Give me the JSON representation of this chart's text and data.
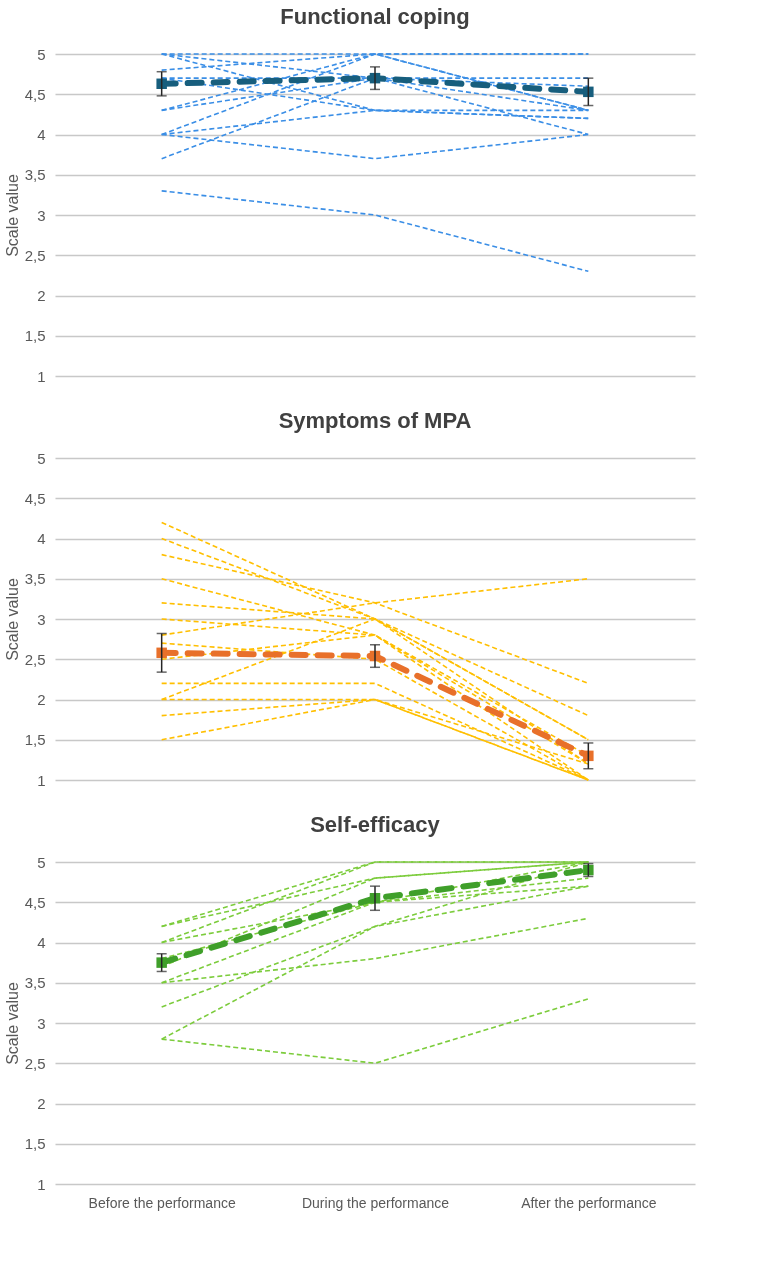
{
  "chart_data": [
    {
      "type": "line",
      "title": "Functional coping",
      "ylabel": "Scale value",
      "categories": [
        null,
        null,
        null
      ],
      "ylim": [
        1,
        5
      ],
      "yticks": [
        1,
        {
          "value": 1.5,
          "label": "1,5"
        },
        2,
        {
          "value": 2.5,
          "label": "2,5"
        },
        3,
        {
          "value": 3.5,
          "label": "3,5"
        },
        4,
        {
          "value": 4.5,
          "label": "4,5"
        },
        5
      ],
      "grid": "y",
      "line_style": "dashed",
      "series": [
        {
          "color": "#3a8ee6",
          "values": [
            3.3,
            3.0,
            2.3
          ]
        },
        {
          "color": "#3a8ee6",
          "values": [
            4.0,
            3.7,
            4.0
          ]
        },
        {
          "color": "#3a8ee6",
          "values": [
            3.7,
            4.7,
            4.3
          ]
        },
        {
          "color": "#3a8ee6",
          "values": [
            4.0,
            5.0,
            4.3
          ]
        },
        {
          "color": "#3a8ee6",
          "values": [
            4.0,
            4.3,
            4.2
          ]
        },
        {
          "color": "#3a8ee6",
          "values": [
            4.3,
            4.7,
            4.7
          ]
        },
        {
          "color": "#3a8ee6",
          "values": [
            4.3,
            5.0,
            5.0
          ]
        },
        {
          "color": "#3a8ee6",
          "values": [
            5.0,
            4.3,
            4.3
          ]
        },
        {
          "color": "#3a8ee6",
          "values": [
            5.0,
            5.0,
            5.0
          ]
        },
        {
          "color": "#3a8ee6",
          "values": [
            4.7,
            4.7,
            4.6
          ]
        },
        {
          "color": "#3a8ee6",
          "values": [
            5.0,
            4.7,
            4.0
          ]
        },
        {
          "color": "#3a8ee6",
          "values": [
            4.8,
            5.0,
            4.3
          ]
        },
        {
          "color": "#3a8ee6",
          "values": [
            4.7,
            4.3,
            4.2
          ]
        },
        {
          "color": "#175e7d",
          "values": [
            4.63,
            4.7,
            4.53
          ],
          "errors": [
            0.15,
            0.14,
            0.17
          ],
          "marker": "square"
        }
      ]
    },
    {
      "type": "line",
      "title": "Symptoms of MPA",
      "ylabel": "Scale value",
      "categories": [
        null,
        null,
        null
      ],
      "ylim": [
        1,
        5
      ],
      "yticks": [
        1,
        {
          "value": 1.5,
          "label": "1,5"
        },
        2,
        {
          "value": 2.5,
          "label": "2,5"
        },
        3,
        {
          "value": 3.5,
          "label": "3,5"
        },
        4,
        {
          "value": 4.5,
          "label": "4,5"
        },
        5
      ],
      "grid": "y",
      "line_style": "dashed",
      "series": [
        {
          "color": "#ffbf00",
          "values": [
            4.2,
            3.0,
            1.5
          ]
        },
        {
          "color": "#ffbf00",
          "values": [
            4.0,
            3.0,
            1.8
          ]
        },
        {
          "color": "#ffbf00",
          "values": [
            3.8,
            3.2,
            2.2
          ]
        },
        {
          "color": "#ffbf00",
          "values": [
            3.5,
            2.8,
            1.0
          ]
        },
        {
          "color": "#ffbf00",
          "values": [
            3.2,
            3.0,
            1.2
          ]
        },
        {
          "color": "#ffbf00",
          "values": [
            3.0,
            2.8,
            1.3
          ]
        },
        {
          "color": "#ffbf00",
          "values": [
            2.8,
            3.2,
            3.5
          ]
        },
        {
          "color": "#ffbf00",
          "values": [
            2.7,
            2.5,
            1.0
          ]
        },
        {
          "color": "#ffbf00",
          "values": [
            2.5,
            2.8,
            1.2
          ]
        },
        {
          "color": "#ffbf00",
          "values": [
            2.2,
            2.2,
            1.0
          ]
        },
        {
          "color": "#ffbf00",
          "values": [
            2.0,
            3.0,
            1.5
          ]
        },
        {
          "color": "#ffbf00",
          "values": [
            2.0,
            2.0,
            1.0
          ]
        },
        {
          "color": "#ffbf00",
          "values": [
            1.8,
            2.0,
            1.2
          ]
        },
        {
          "color": "#ffbf00",
          "values": [
            1.5,
            2.0,
            1.0
          ]
        },
        {
          "color": "#e8702a",
          "values": [
            2.58,
            2.54,
            1.3
          ],
          "errors": [
            0.24,
            0.14,
            0.16
          ],
          "marker": "square"
        }
      ]
    },
    {
      "type": "line",
      "title": "Self-efficacy",
      "ylabel": "Scale value",
      "categories": [
        "Before the performance",
        "During the performance",
        "After the performance"
      ],
      "ylim": [
        1,
        5
      ],
      "yticks": [
        1,
        {
          "value": 1.5,
          "label": "1,5"
        },
        2,
        {
          "value": 2.5,
          "label": "2,5"
        },
        3,
        {
          "value": 3.5,
          "label": "3,5"
        },
        4,
        {
          "value": 4.5,
          "label": "4,5"
        },
        5
      ],
      "grid": "y",
      "line_style": "dashed",
      "series": [
        {
          "color": "#7ccc3c",
          "values": [
            2.8,
            2.5,
            3.3
          ]
        },
        {
          "color": "#7ccc3c",
          "values": [
            2.8,
            4.2,
            5.0
          ]
        },
        {
          "color": "#7ccc3c",
          "values": [
            3.2,
            4.2,
            4.7
          ]
        },
        {
          "color": "#7ccc3c",
          "values": [
            3.5,
            3.8,
            4.3
          ]
        },
        {
          "color": "#7ccc3c",
          "values": [
            3.5,
            4.5,
            4.7
          ]
        },
        {
          "color": "#7ccc3c",
          "values": [
            3.7,
            4.8,
            5.0
          ]
        },
        {
          "color": "#7ccc3c",
          "values": [
            4.0,
            5.0,
            5.0
          ]
        },
        {
          "color": "#7ccc3c",
          "values": [
            4.2,
            5.0,
            5.0
          ]
        },
        {
          "color": "#7ccc3c",
          "values": [
            4.0,
            4.5,
            5.0
          ]
        },
        {
          "color": "#7ccc3c",
          "values": [
            3.8,
            4.5,
            4.8
          ]
        },
        {
          "color": "#7ccc3c",
          "values": [
            4.2,
            4.8,
            5.0
          ]
        },
        {
          "color": "#3f9f2a",
          "values": [
            3.75,
            4.55,
            4.9
          ],
          "errors": [
            0.11,
            0.15,
            0.08
          ],
          "marker": "square"
        }
      ]
    }
  ]
}
